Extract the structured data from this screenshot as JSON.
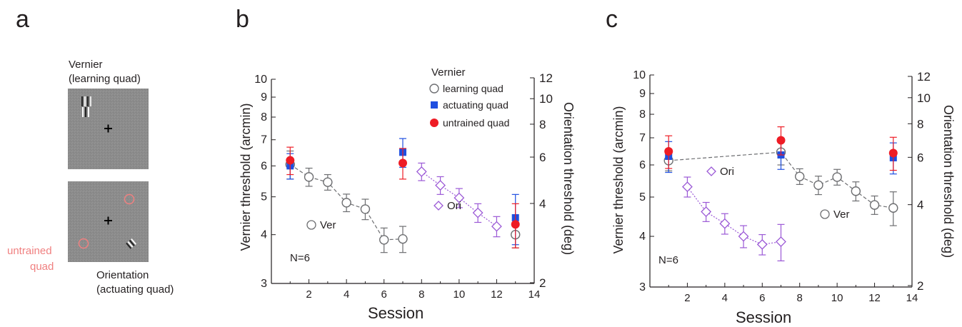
{
  "panel_letters": {
    "a": "a",
    "b": "b",
    "c": "c"
  },
  "panel_a": {
    "vernier_label_1": "Vernier",
    "vernier_label_2": "(learning quad)",
    "untrained_label_1": "untrained",
    "untrained_label_2": "quad",
    "orientation_label_1": "Orientation",
    "orientation_label_2": "(actuating quad)",
    "untrained_color": "#f08080"
  },
  "colors": {
    "ver": "#6d6e71",
    "ori": "#9b59d6",
    "actuating": "#1f4fe0",
    "untrained": "#ee1c25"
  },
  "chart_data": [
    {
      "type": "scatter",
      "panel": "b",
      "xlabel": "Session",
      "ylabel": "Vernier threshold (arcmin)",
      "ylabel_right": "Orientation threshold (deg)",
      "xlim": [
        0,
        14
      ],
      "x_ticks": [
        2,
        4,
        6,
        8,
        10,
        12,
        14
      ],
      "y_scale": "log",
      "ylim": [
        3,
        10
      ],
      "y_ticks": [
        3,
        4,
        5,
        6,
        7,
        8,
        9,
        10
      ],
      "y2_scale": "log",
      "y2lim": [
        2,
        12
      ],
      "y2_ticks": [
        2,
        4,
        6,
        8,
        10,
        12
      ],
      "legend_title": "Vernier",
      "legend_position": "top-right",
      "note": "N=6",
      "series": [
        {
          "name": "learning quad",
          "marker": "open-circle",
          "color": "#6d6e71",
          "dashed": true,
          "inline_label": "Ver",
          "x": [
            1,
            2,
            3,
            4,
            5,
            6,
            7
          ],
          "y": [
            6.05,
            5.62,
            5.45,
            4.83,
            4.65,
            3.88,
            3.9
          ],
          "err": [
            0.5,
            0.3,
            0.25,
            0.25,
            0.28,
            0.28,
            0.3
          ],
          "extra": {
            "x": 13,
            "y": 4.0,
            "err": 0.3
          }
        },
        {
          "name": "actuating quad",
          "marker": "filled-square",
          "color": "#1f4fe0",
          "x": [
            1,
            7,
            13
          ],
          "y": [
            6.0,
            6.5,
            4.42
          ],
          "err": [
            0.45,
            0.55,
            0.65
          ]
        },
        {
          "name": "untrained quad",
          "marker": "filled-circle",
          "color": "#ee1c25",
          "x": [
            1,
            7,
            13
          ],
          "y": [
            6.2,
            6.1,
            4.25
          ],
          "err": [
            0.5,
            0.55,
            0.55
          ]
        },
        {
          "name": "Ori",
          "marker": "open-diamond",
          "color": "#9b59d6",
          "dashed": false,
          "inline_label": "Ori",
          "axis": "right",
          "x": [
            8,
            9,
            10,
            11,
            12
          ],
          "y": [
            5.8,
            5.35,
            4.97,
            4.55,
            4.2
          ],
          "err": [
            0.3,
            0.28,
            0.28,
            0.25,
            0.25
          ]
        }
      ]
    },
    {
      "type": "scatter",
      "panel": "c",
      "xlabel": "Session",
      "ylabel": "Vernier threshold (arcmin)",
      "ylabel_right": "Orientation threshold (deg)",
      "xlim": [
        0,
        14
      ],
      "x_ticks": [
        2,
        4,
        6,
        8,
        10,
        12,
        14
      ],
      "y_scale": "log",
      "ylim": [
        3,
        10
      ],
      "y_ticks": [
        3,
        4,
        5,
        6,
        7,
        8,
        9,
        10
      ],
      "y2_scale": "log",
      "y2lim": [
        2,
        12
      ],
      "y2_ticks": [
        2,
        4,
        6,
        8,
        10,
        12
      ],
      "note": "N=6",
      "series": [
        {
          "name": "learning quad",
          "marker": "open-circle",
          "color": "#6d6e71",
          "dashed": true,
          "inline_label": "Ver",
          "x": [
            1,
            7,
            8,
            9,
            10,
            11,
            12,
            13
          ],
          "y": [
            6.15,
            6.45,
            5.62,
            5.35,
            5.6,
            5.17,
            4.78,
            4.7
          ],
          "err": [
            0.35,
            0.45,
            0.25,
            0.28,
            0.25,
            0.28,
            0.25,
            0.45
          ]
        },
        {
          "name": "actuating quad",
          "marker": "filled-square",
          "color": "#1f4fe0",
          "x": [
            1,
            7,
            13
          ],
          "y": [
            6.3,
            6.35,
            6.25
          ],
          "err": [
            0.55,
            0.5,
            0.55
          ]
        },
        {
          "name": "untrained quad",
          "marker": "filled-circle",
          "color": "#ee1c25",
          "x": [
            1,
            7,
            13
          ],
          "y": [
            6.48,
            6.9,
            6.42
          ],
          "err": [
            0.6,
            0.55,
            0.6
          ]
        },
        {
          "name": "Ori",
          "marker": "open-diamond",
          "color": "#9b59d6",
          "dashed": false,
          "inline_label": "Ori",
          "axis": "right",
          "x": [
            2,
            3,
            4,
            5,
            6,
            7
          ],
          "y": [
            5.3,
            4.6,
            4.3,
            4.0,
            3.82,
            3.88
          ],
          "err": [
            0.3,
            0.25,
            0.25,
            0.25,
            0.22,
            0.4
          ]
        }
      ]
    }
  ]
}
